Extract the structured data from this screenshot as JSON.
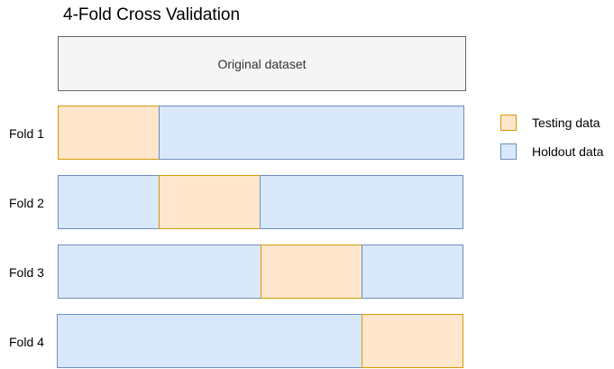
{
  "title": "4-Fold Cross Validation",
  "dataset_label": "Original dataset",
  "folds": [
    {
      "label": "Fold 1",
      "test_index": 0
    },
    {
      "label": "Fold 2",
      "test_index": 1
    },
    {
      "label": "Fold 3",
      "test_index": 2
    },
    {
      "label": "Fold 4",
      "test_index": 3
    }
  ],
  "partitions": 4,
  "legend": {
    "testing": "Testing data",
    "holdout": "Holdout data"
  },
  "colors": {
    "testing_fill": "#ffe6cc",
    "testing_stroke": "#d79b00",
    "holdout_fill": "#dae8fc",
    "holdout_stroke": "#6c8ebf",
    "dataset_fill": "#f5f5f5"
  }
}
